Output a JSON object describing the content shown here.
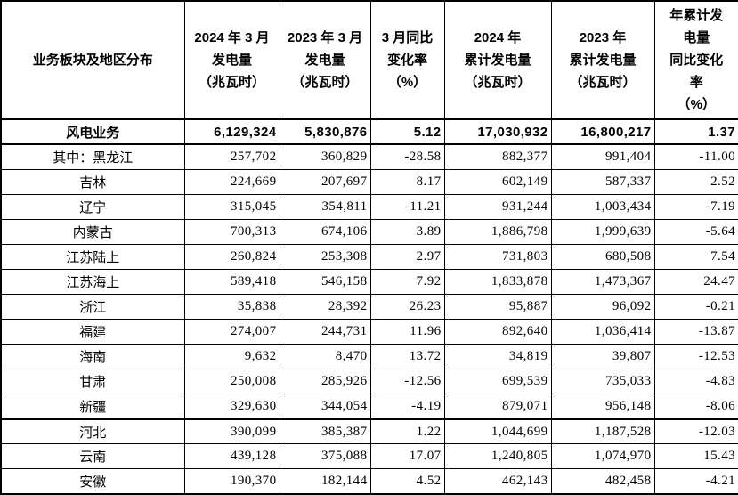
{
  "page": {
    "background_color": "#ffffff",
    "border_color": "#000000",
    "text_color": "#000000"
  },
  "table": {
    "name": "wind-power-generation-table",
    "columns": [
      {
        "id": "region",
        "lines": [
          "业务板块及地区分布"
        ]
      },
      {
        "id": "gen_2024_march",
        "lines": [
          "2024 年 3 月",
          "发电量",
          "（兆瓦时）"
        ]
      },
      {
        "id": "gen_2023_march",
        "lines": [
          "2023 年 3 月",
          "发电量",
          "（兆瓦时）"
        ]
      },
      {
        "id": "march_yoy",
        "lines": [
          "3 月同比",
          "变化率",
          "（%）"
        ]
      },
      {
        "id": "cum_2024",
        "lines": [
          "2024 年",
          "累计发电量",
          "（兆瓦时）"
        ]
      },
      {
        "id": "cum_2023",
        "lines": [
          "2023 年",
          "累计发电量",
          "（兆瓦时）"
        ]
      },
      {
        "id": "cum_yoy",
        "lines": [
          "年累计发",
          "电量",
          "同比变化",
          "率",
          "（%）"
        ]
      }
    ],
    "summary_row": {
      "label": "风电业务",
      "values": [
        "6,129,324",
        "5,830,876",
        "5.12",
        "17,030,932",
        "16,800,217",
        "1.37"
      ]
    },
    "rows": [
      {
        "label": "其中：黑龙江",
        "values": [
          "257,702",
          "360,829",
          "-28.58",
          "882,377",
          "991,404",
          "-11.00"
        ],
        "thick_top": false
      },
      {
        "label": "吉林",
        "values": [
          "224,669",
          "207,697",
          "8.17",
          "602,149",
          "587,337",
          "2.52"
        ],
        "thick_top": false
      },
      {
        "label": "辽宁",
        "values": [
          "315,045",
          "354,811",
          "-11.21",
          "931,244",
          "1,003,434",
          "-7.19"
        ],
        "thick_top": false
      },
      {
        "label": "内蒙古",
        "values": [
          "700,313",
          "674,106",
          "3.89",
          "1,886,798",
          "1,999,639",
          "-5.64"
        ],
        "thick_top": false
      },
      {
        "label": "江苏陆上",
        "values": [
          "260,824",
          "253,308",
          "2.97",
          "731,803",
          "680,508",
          "7.54"
        ],
        "thick_top": false
      },
      {
        "label": "江苏海上",
        "values": [
          "589,418",
          "546,158",
          "7.92",
          "1,833,878",
          "1,473,367",
          "24.47"
        ],
        "thick_top": false
      },
      {
        "label": "浙江",
        "values": [
          "35,838",
          "28,392",
          "26.23",
          "95,887",
          "96,092",
          "-0.21"
        ],
        "thick_top": false
      },
      {
        "label": "福建",
        "values": [
          "274,007",
          "244,731",
          "11.96",
          "892,640",
          "1,036,414",
          "-13.87"
        ],
        "thick_top": false
      },
      {
        "label": "海南",
        "values": [
          "9,632",
          "8,470",
          "13.72",
          "34,819",
          "39,807",
          "-12.53"
        ],
        "thick_top": false
      },
      {
        "label": "甘肃",
        "values": [
          "250,008",
          "285,926",
          "-12.56",
          "699,539",
          "735,033",
          "-4.83"
        ],
        "thick_top": false
      },
      {
        "label": "新疆",
        "values": [
          "329,630",
          "344,054",
          "-4.19",
          "879,071",
          "956,148",
          "-8.06"
        ],
        "thick_top": false
      },
      {
        "label": "河北",
        "values": [
          "390,099",
          "385,387",
          "1.22",
          "1,044,699",
          "1,187,528",
          "-12.03"
        ],
        "thick_top": true
      },
      {
        "label": "云南",
        "values": [
          "439,128",
          "375,088",
          "17.07",
          "1,240,805",
          "1,074,970",
          "15.43"
        ],
        "thick_top": false
      },
      {
        "label": "安徽",
        "values": [
          "190,370",
          "182,144",
          "4.52",
          "462,143",
          "482,458",
          "-4.21"
        ],
        "thick_top": false
      }
    ]
  }
}
